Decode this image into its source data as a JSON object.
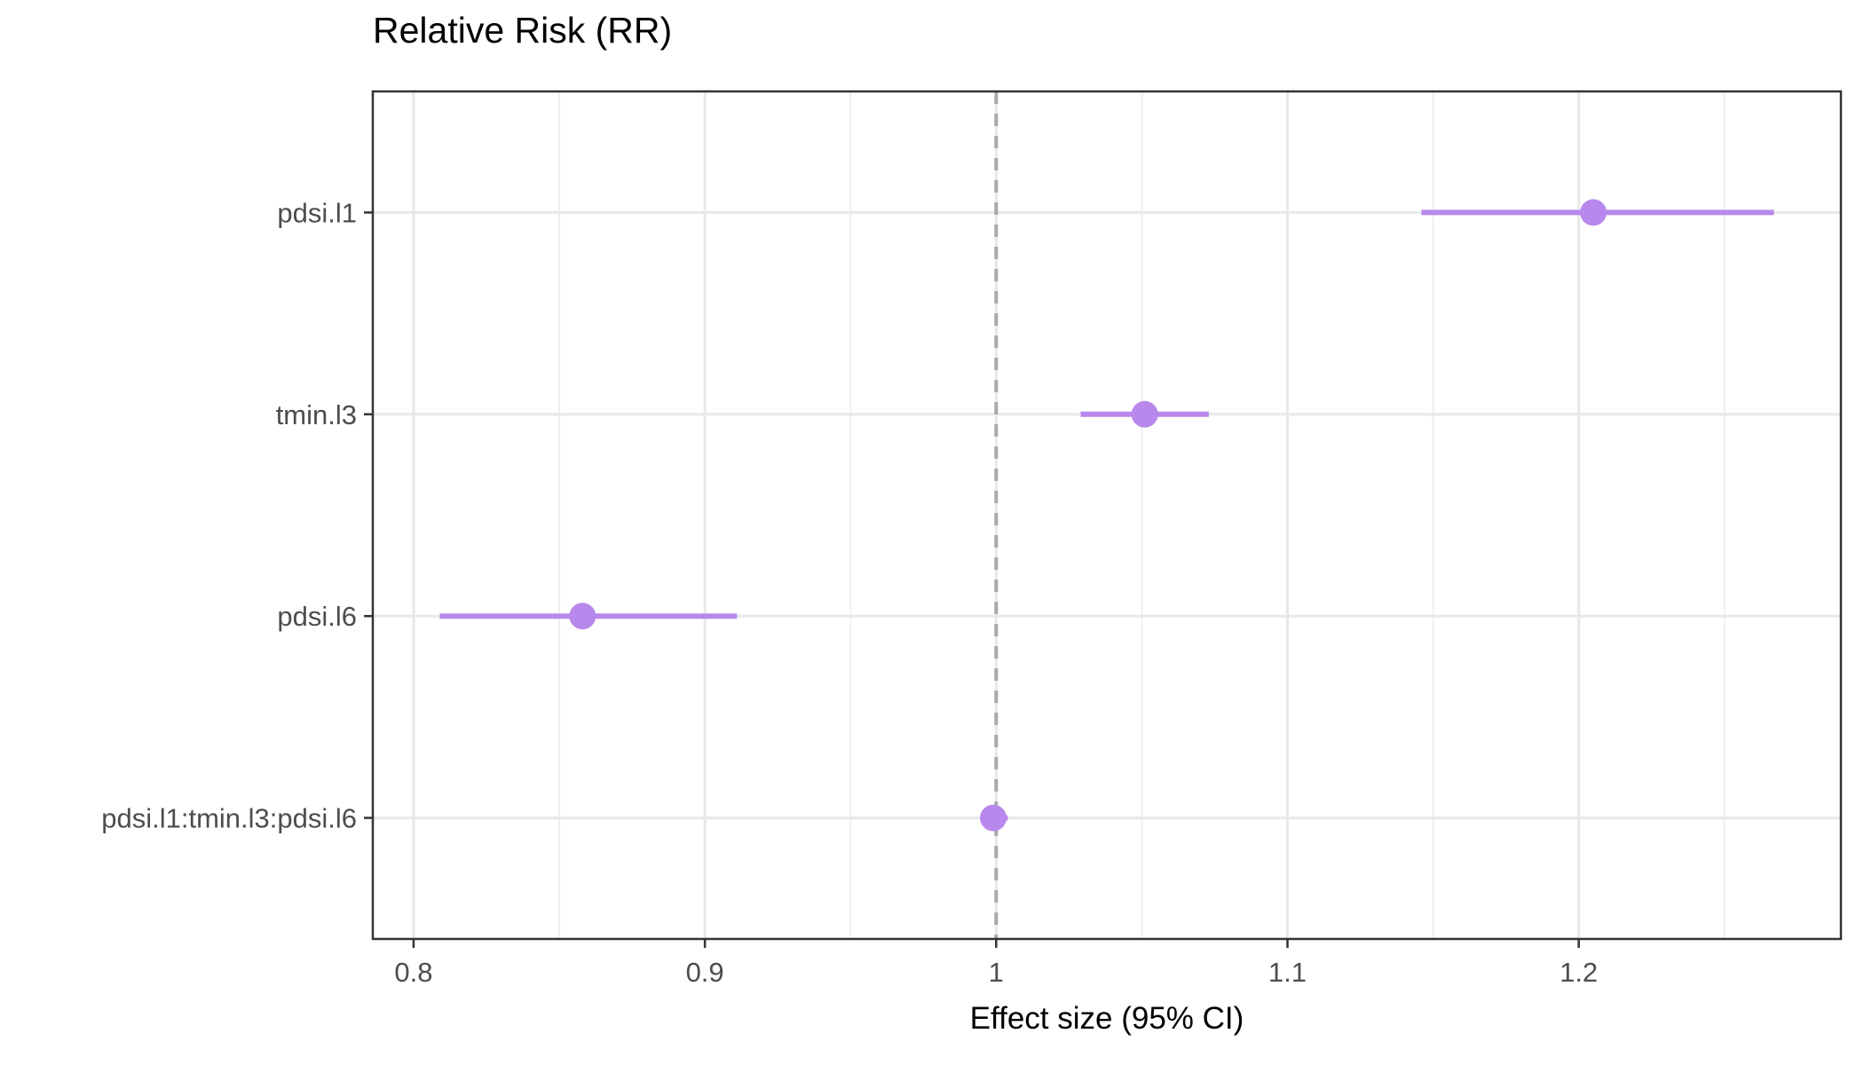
{
  "chart_data": {
    "type": "scatter",
    "subtype": "forest-plot-with-error-bars",
    "title": "Relative Risk (RR)",
    "xlabel": "Effect size (95% CI)",
    "ylabel": "",
    "categories": [
      "pdsi.l1",
      "tmin.l3",
      "pdsi.l6",
      "pdsi.l1:tmin.l3:pdsi.l6"
    ],
    "series": [
      {
        "label": "pdsi.l1",
        "estimate": 1.205,
        "ci_low": 1.146,
        "ci_high": 1.267
      },
      {
        "label": "tmin.l3",
        "estimate": 1.051,
        "ci_low": 1.029,
        "ci_high": 1.073
      },
      {
        "label": "pdsi.l6",
        "estimate": 0.858,
        "ci_low": 0.809,
        "ci_high": 0.911
      },
      {
        "label": "pdsi.l1:tmin.l3:pdsi.l6",
        "estimate": 0.999,
        "ci_low": 0.995,
        "ci_high": 1.004
      }
    ],
    "x_ticks": [
      0.8,
      0.9,
      1.0,
      1.1,
      1.2
    ],
    "x_tick_labels": [
      "0.8",
      "0.9",
      "1",
      "1.1",
      "1.2"
    ],
    "x_minor_ticks": [
      0.85,
      0.95,
      1.05,
      1.15,
      1.25
    ],
    "xlim": [
      0.786,
      1.29
    ],
    "reference_line_x": 1.0,
    "grid": "on",
    "legend": "none",
    "colors": {
      "point": "#B888EC",
      "ci_line": "#B888EC",
      "reference_line": "#A9A9A9",
      "grid_major": "#E8E8E8",
      "grid_minor": "#F0F0F0",
      "panel_border": "#333333",
      "tick_mark": "#333333",
      "axis_text": "#4D4D4D",
      "title_text": "#000000"
    }
  }
}
